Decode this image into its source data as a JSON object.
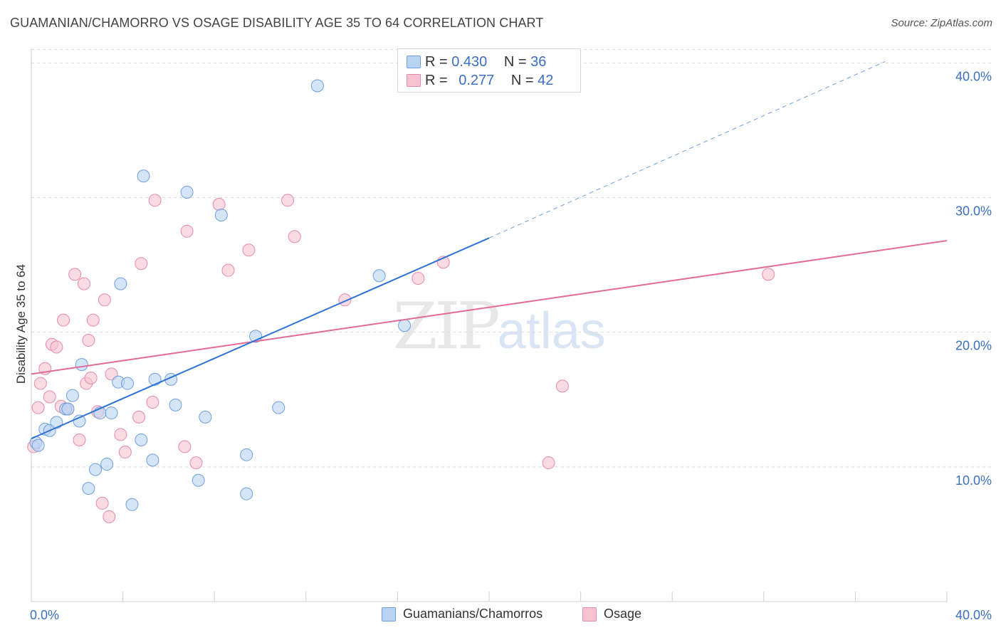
{
  "header": {
    "title": "GUAMANIAN/CHAMORRO VS OSAGE DISABILITY AGE 35 TO 64 CORRELATION CHART",
    "source": "Source: ZipAtlas.com"
  },
  "legend": {
    "series1": {
      "r_label": "R =",
      "r_value": "0.430",
      "n_label": "N =",
      "n_value": "36"
    },
    "series2": {
      "r_label": "R =",
      "r_value": "0.277",
      "n_label": "N =",
      "n_value": "42"
    }
  },
  "bottom_legend": {
    "series1": "Guamanians/Chamorros",
    "series2": "Osage"
  },
  "watermark": {
    "zip": "ZIP",
    "atlas": "atlas"
  },
  "colors": {
    "blue_fill": "#b9d3f3",
    "blue_stroke": "#6f9fdc",
    "blue_line": "#2f72d6",
    "pink_fill": "#f7c3d2",
    "pink_stroke": "#e58aa8",
    "pink_line": "#e36a97",
    "tick_label": "#3a6fc4",
    "grid": "#dcdcdc"
  },
  "chart_data": {
    "type": "scatter",
    "title": "GUAMANIAN/CHAMORRO VS OSAGE DISABILITY AGE 35 TO 64 CORRELATION CHART",
    "xlabel": "",
    "ylabel": "Disability Age 35 to 64",
    "xlim": [
      0,
      40
    ],
    "ylim": [
      0,
      41.5
    ],
    "x_tick_labels": [
      "0.0%",
      "40.0%"
    ],
    "y_ticks": [
      10,
      20,
      30,
      40
    ],
    "y_tick_labels": [
      "10.0%",
      "20.0%",
      "30.0%",
      "40.0%"
    ],
    "series": [
      {
        "name": "Guamanians/Chamorros",
        "color": "#6f9fdc",
        "R": 0.43,
        "N": 36,
        "trend": {
          "x0": 0,
          "y0": 12.1,
          "x1": 20,
          "y1": 27.0,
          "dashed_to_x": 37.3,
          "dashed_to_y": 40.1
        },
        "points": [
          [
            0.2,
            11.8
          ],
          [
            0.3,
            11.6
          ],
          [
            0.6,
            12.8
          ],
          [
            0.8,
            12.7
          ],
          [
            1.1,
            13.3
          ],
          [
            1.5,
            14.3
          ],
          [
            1.6,
            14.3
          ],
          [
            1.8,
            15.3
          ],
          [
            2.1,
            13.4
          ],
          [
            2.2,
            17.6
          ],
          [
            2.5,
            8.4
          ],
          [
            2.8,
            9.8
          ],
          [
            3.0,
            14.0
          ],
          [
            3.3,
            10.2
          ],
          [
            3.5,
            14.0
          ],
          [
            3.8,
            16.3
          ],
          [
            3.9,
            23.6
          ],
          [
            4.2,
            16.2
          ],
          [
            4.4,
            7.2
          ],
          [
            4.8,
            12.0
          ],
          [
            4.9,
            31.6
          ],
          [
            5.3,
            10.5
          ],
          [
            5.4,
            16.5
          ],
          [
            6.1,
            16.5
          ],
          [
            6.3,
            14.6
          ],
          [
            6.8,
            30.4
          ],
          [
            7.3,
            9.0
          ],
          [
            7.6,
            13.7
          ],
          [
            8.3,
            28.7
          ],
          [
            9.4,
            10.9
          ],
          [
            9.4,
            8.0
          ],
          [
            9.8,
            19.7
          ],
          [
            10.8,
            14.4
          ],
          [
            12.5,
            38.3
          ],
          [
            15.2,
            24.2
          ],
          [
            16.3,
            20.5
          ]
        ]
      },
      {
        "name": "Osage",
        "color": "#e58aa8",
        "R": 0.277,
        "N": 42,
        "trend": {
          "x0": 0,
          "y0": 16.9,
          "x1": 40,
          "y1": 26.8
        },
        "points": [
          [
            0.1,
            11.5
          ],
          [
            0.3,
            14.4
          ],
          [
            0.4,
            16.2
          ],
          [
            0.6,
            17.3
          ],
          [
            0.8,
            15.2
          ],
          [
            0.9,
            19.1
          ],
          [
            1.1,
            18.9
          ],
          [
            1.3,
            14.5
          ],
          [
            1.4,
            20.9
          ],
          [
            1.6,
            14.3
          ],
          [
            1.9,
            24.3
          ],
          [
            2.1,
            12.0
          ],
          [
            2.3,
            23.6
          ],
          [
            2.4,
            16.2
          ],
          [
            2.5,
            19.4
          ],
          [
            2.6,
            16.6
          ],
          [
            2.7,
            20.9
          ],
          [
            2.9,
            14.1
          ],
          [
            3.1,
            7.3
          ],
          [
            3.2,
            22.4
          ],
          [
            3.4,
            6.3
          ],
          [
            3.5,
            16.9
          ],
          [
            3.9,
            12.4
          ],
          [
            4.1,
            11.1
          ],
          [
            4.7,
            13.7
          ],
          [
            4.8,
            25.1
          ],
          [
            5.3,
            14.8
          ],
          [
            5.4,
            29.8
          ],
          [
            6.7,
            11.5
          ],
          [
            6.8,
            27.5
          ],
          [
            7.2,
            10.3
          ],
          [
            8.2,
            29.5
          ],
          [
            8.6,
            24.6
          ],
          [
            9.5,
            26.1
          ],
          [
            11.2,
            29.8
          ],
          [
            11.5,
            27.1
          ],
          [
            13.7,
            22.4
          ],
          [
            16.9,
            24.0
          ],
          [
            18.0,
            25.2
          ],
          [
            22.6,
            10.3
          ],
          [
            23.2,
            16.0
          ],
          [
            32.2,
            24.3
          ]
        ]
      }
    ],
    "legend_position": "top-center",
    "grid": true
  }
}
